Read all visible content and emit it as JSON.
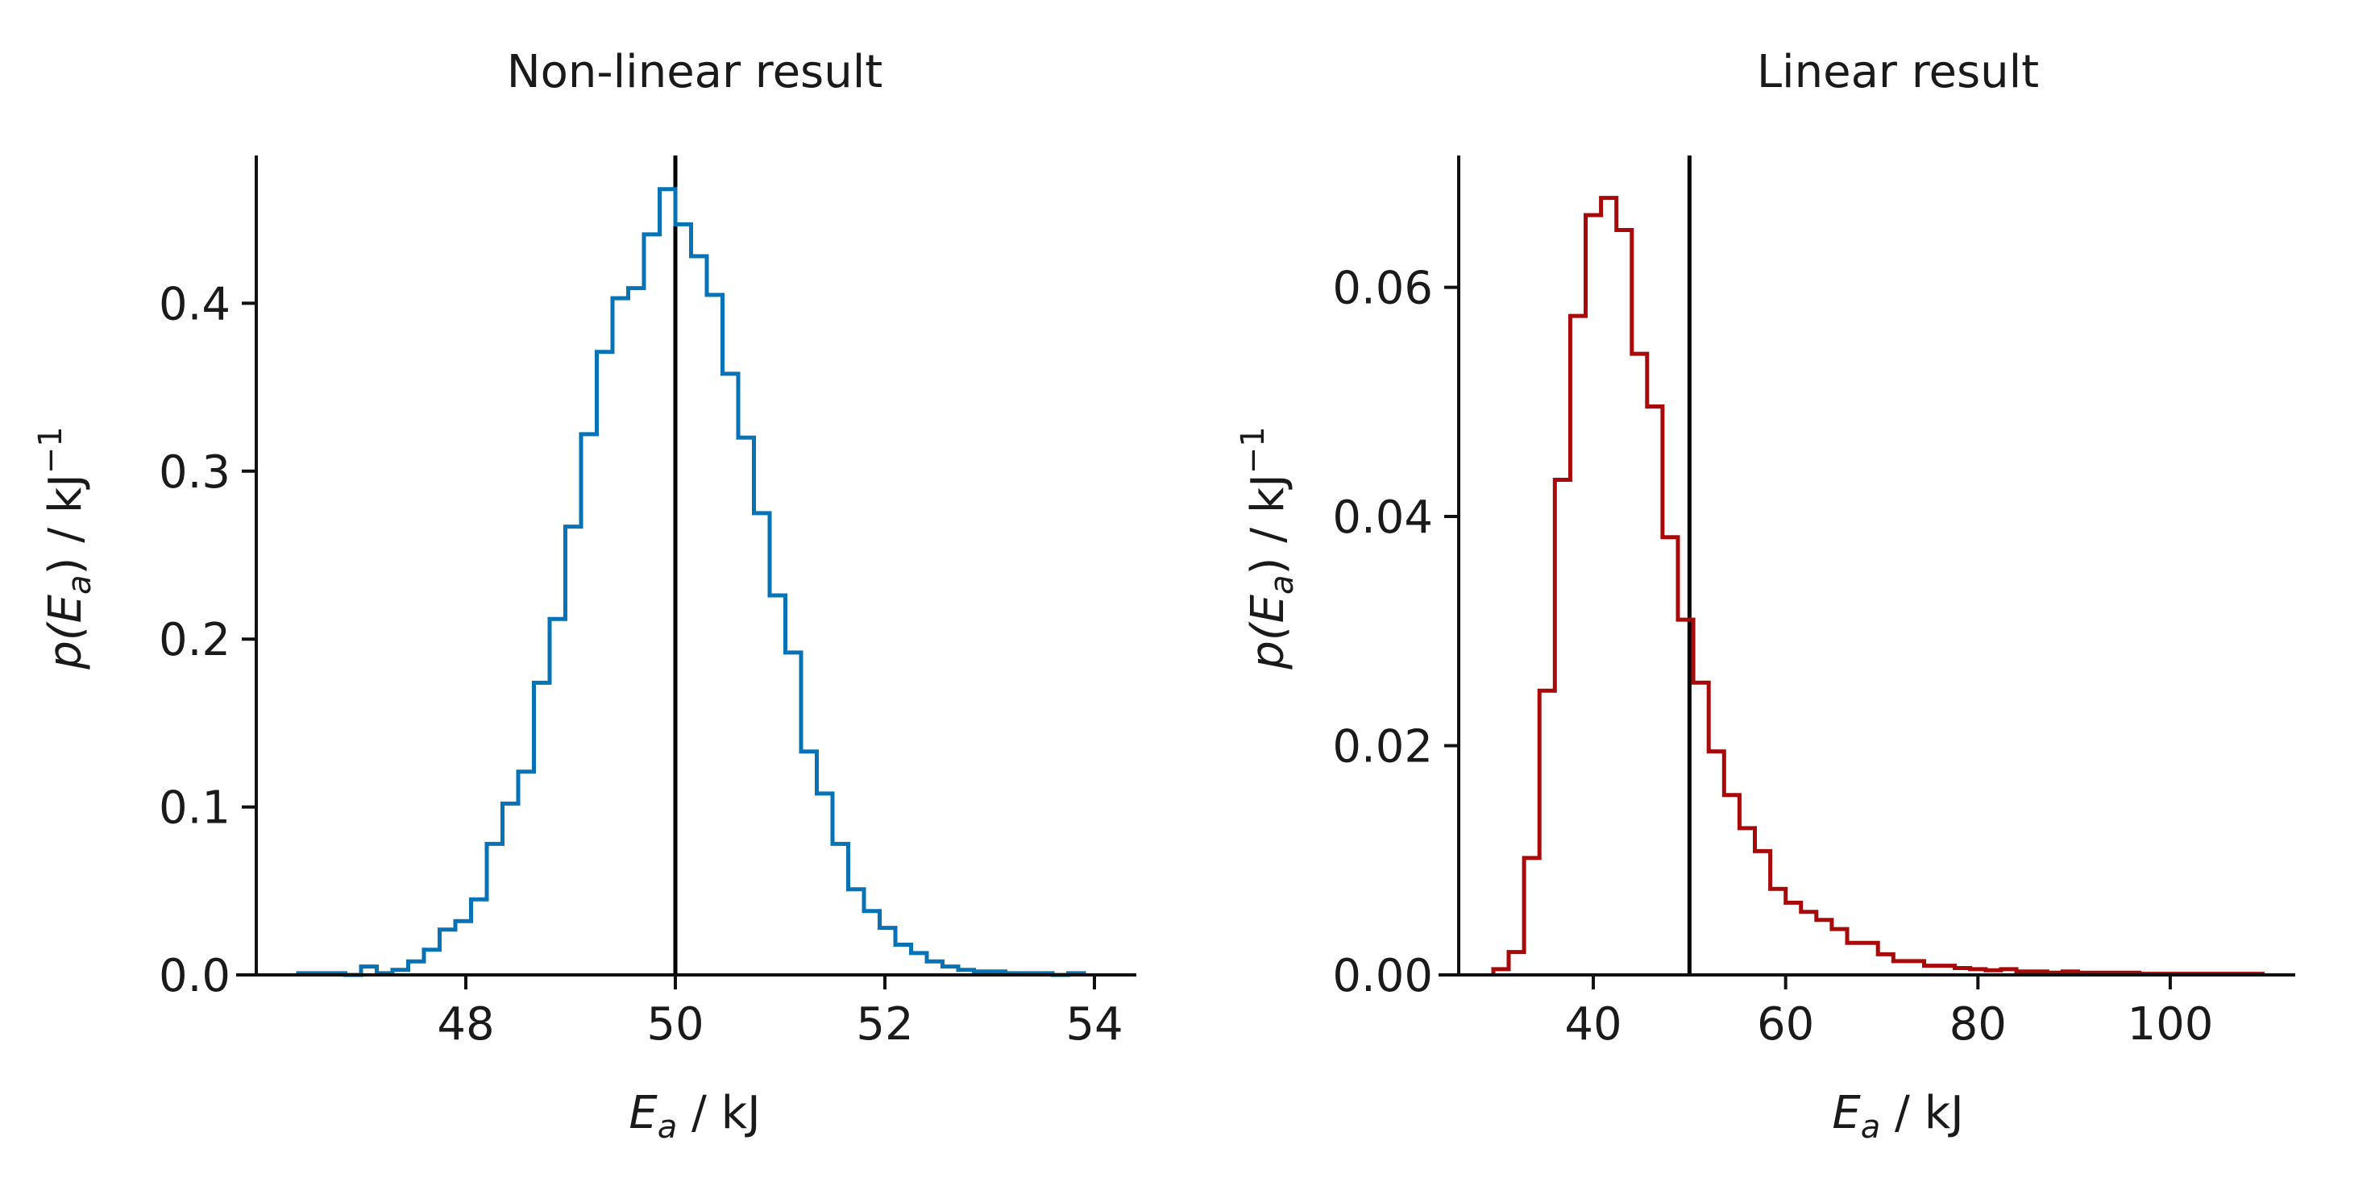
{
  "chart_data": [
    {
      "type": "histogram",
      "title": "Non-linear result",
      "xlabel": {
        "var": "E",
        "sub": "a",
        "unit": " / kJ"
      },
      "ylabel": {
        "pre": "p(",
        "var": "E",
        "sub": "a",
        "post": ") / kJ",
        "sup": "−1"
      },
      "xlim": [
        46.0,
        54.4
      ],
      "ylim": [
        0,
        0.488
      ],
      "xticks": [
        48,
        50,
        52,
        54
      ],
      "xtick_labels": [
        "48",
        "50",
        "52",
        "54"
      ],
      "yticks": [
        0.0,
        0.1,
        0.2,
        0.3,
        0.4
      ],
      "ytick_labels": [
        "0.0",
        "0.1",
        "0.2",
        "0.3",
        "0.4"
      ],
      "reference_x": 50,
      "color": "#0773b6",
      "bin_start": 46.4,
      "bin_width": 0.15,
      "values": [
        0.001,
        0.001,
        0.001,
        0.0,
        0.005,
        0.001,
        0.003,
        0.008,
        0.015,
        0.027,
        0.032,
        0.045,
        0.078,
        0.102,
        0.121,
        0.174,
        0.212,
        0.267,
        0.322,
        0.371,
        0.403,
        0.409,
        0.441,
        0.468,
        0.447,
        0.428,
        0.405,
        0.358,
        0.32,
        0.275,
        0.226,
        0.192,
        0.133,
        0.108,
        0.078,
        0.051,
        0.038,
        0.028,
        0.018,
        0.013,
        0.008,
        0.005,
        0.003,
        0.002,
        0.002,
        0.001,
        0.001,
        0.001,
        0.0,
        0.001
      ]
    },
    {
      "type": "histogram",
      "title": "Linear result",
      "xlabel": {
        "var": "E",
        "sub": "a",
        "unit": " / kJ"
      },
      "ylabel": {
        "pre": "p(",
        "var": "E",
        "sub": "a",
        "post": ") / kJ",
        "sup": "−1"
      },
      "xlim": [
        26,
        113
      ],
      "ylim": [
        0,
        0.0715
      ],
      "xticks": [
        40,
        60,
        80,
        100
      ],
      "xtick_labels": [
        "40",
        "60",
        "80",
        "100"
      ],
      "yticks": [
        0.0,
        0.02,
        0.04,
        0.06
      ],
      "ytick_labels": [
        "0.00",
        "0.02",
        "0.04",
        "0.06"
      ],
      "reference_x": 50,
      "color": "#a80a0a",
      "bin_start": 29.6,
      "bin_width": 1.6,
      "values": [
        0.0005,
        0.002,
        0.0102,
        0.0248,
        0.0432,
        0.0575,
        0.0663,
        0.0678,
        0.065,
        0.0542,
        0.0496,
        0.0382,
        0.031,
        0.0255,
        0.0195,
        0.0157,
        0.0128,
        0.0108,
        0.0075,
        0.0063,
        0.0055,
        0.0048,
        0.004,
        0.0028,
        0.0028,
        0.0018,
        0.0012,
        0.0012,
        0.0008,
        0.0008,
        0.0006,
        0.0005,
        0.0004,
        0.0005,
        0.0003,
        0.0003,
        0.0002,
        0.0003,
        0.0002,
        0.0002,
        0.0002,
        0.0002,
        0.0001,
        0.0001,
        0.0001,
        0.0001,
        0.0001,
        0.0001,
        0.0001,
        0.0001
      ]
    }
  ]
}
